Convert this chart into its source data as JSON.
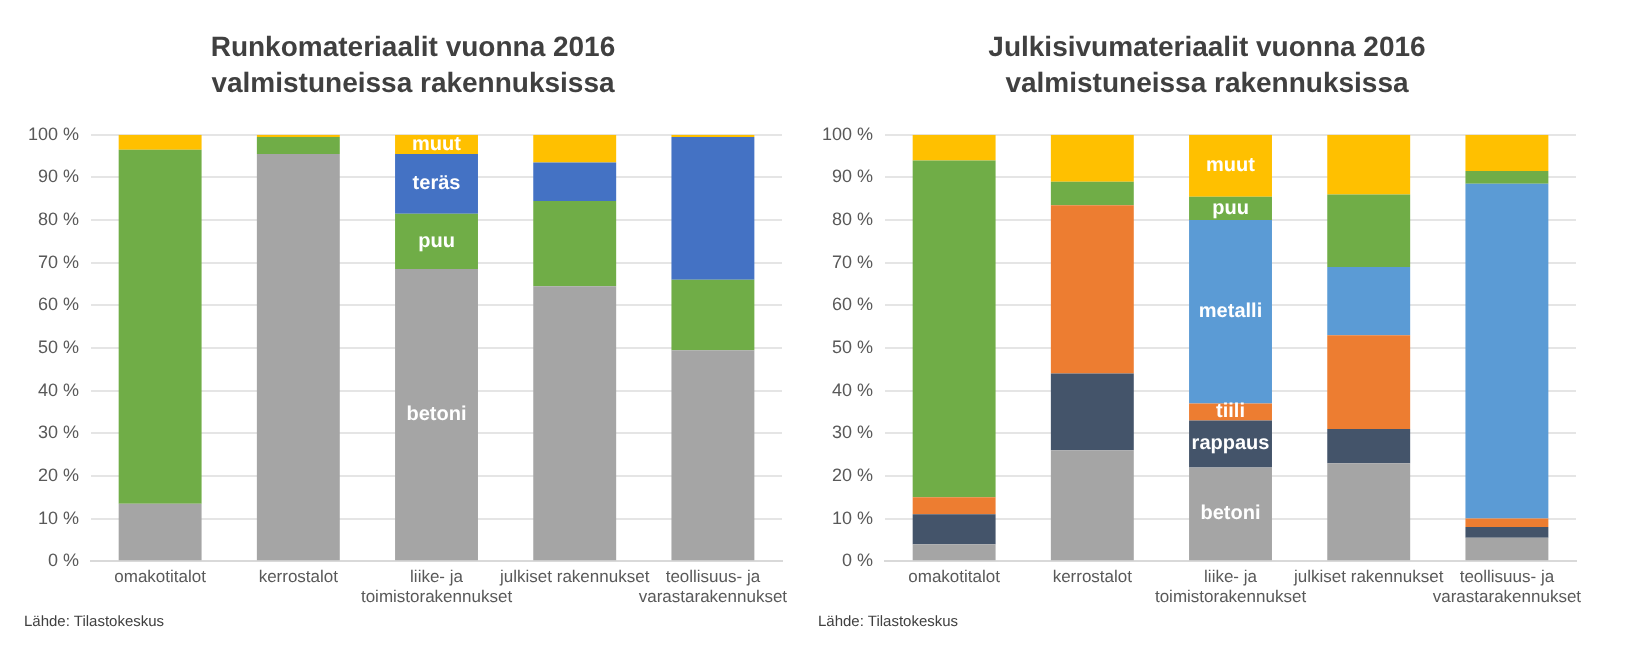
{
  "chart_data": [
    {
      "type": "bar",
      "stacked": true,
      "title": "Runkomateriaalit vuonna 2016 valmistuneissa rakennuksissa",
      "categories": [
        "omakotitalot",
        "kerrostalot",
        "liike- ja toimistorakennukset",
        "julkiset rakennukset",
        "teollisuus- ja varastarakennukset"
      ],
      "series": [
        {
          "name": "betoni",
          "color": "#a5a5a5",
          "values": [
            13.5,
            95.5,
            68.5,
            64.5,
            49.5
          ]
        },
        {
          "name": "puu",
          "color": "#70ad47",
          "values": [
            83,
            4,
            13,
            20,
            16.5
          ]
        },
        {
          "name": "teräs",
          "color": "#4472c4",
          "values": [
            0,
            0,
            14,
            9,
            33.5
          ]
        },
        {
          "name": "muut",
          "color": "#ffc000",
          "values": [
            3.5,
            0.5,
            4.5,
            6.5,
            0.5
          ]
        }
      ],
      "ylim": [
        0,
        100
      ],
      "yticks": [
        {
          "value": 0,
          "label": "0 %"
        },
        {
          "value": 10,
          "label": "10 %"
        },
        {
          "value": 20,
          "label": "20 %"
        },
        {
          "value": 30,
          "label": "30 %"
        },
        {
          "value": 40,
          "label": "40 %"
        },
        {
          "value": 50,
          "label": "50 %"
        },
        {
          "value": 60,
          "label": "60 %"
        },
        {
          "value": 70,
          "label": "70 %"
        },
        {
          "value": 80,
          "label": "80 %"
        },
        {
          "value": 90,
          "label": "90 %"
        },
        {
          "value": 100,
          "label": "100 %"
        }
      ],
      "grid": "y",
      "legend": false,
      "annotations": [
        "Lähde: Tilastokeskus"
      ]
    },
    {
      "type": "bar",
      "stacked": true,
      "title": "Julkisivumateriaalit vuonna 2016 valmistuneissa rakennuksissa",
      "categories": [
        "omakotitalot",
        "kerrostalot",
        "liike- ja toimistorakennukset",
        "julkiset rakennukset",
        "teollisuus- ja varastarakennukset"
      ],
      "series": [
        {
          "name": "betoni",
          "color": "#a5a5a5",
          "values": [
            4,
            26,
            22,
            23,
            5.5
          ]
        },
        {
          "name": "rappaus",
          "color": "#44546a",
          "values": [
            7,
            18,
            11,
            8,
            2.5
          ]
        },
        {
          "name": "tiili",
          "color": "#ed7d31",
          "values": [
            4,
            39.5,
            4,
            22,
            2
          ]
        },
        {
          "name": "metalli",
          "color": "#5b9bd5",
          "values": [
            0,
            0,
            43,
            16,
            78.5
          ]
        },
        {
          "name": "puu",
          "color": "#70ad47",
          "values": [
            79,
            5.5,
            5.5,
            17,
            3
          ]
        },
        {
          "name": "muut",
          "color": "#ffc000",
          "values": [
            6,
            11,
            14.5,
            14,
            8.5
          ]
        }
      ],
      "ylim": [
        0,
        100
      ],
      "yticks": [
        {
          "value": 0,
          "label": "0 %"
        },
        {
          "value": 10,
          "label": "10 %"
        },
        {
          "value": 20,
          "label": "20 %"
        },
        {
          "value": 30,
          "label": "30 %"
        },
        {
          "value": 40,
          "label": "40 %"
        },
        {
          "value": 50,
          "label": "50 %"
        },
        {
          "value": 60,
          "label": "60 %"
        },
        {
          "value": 70,
          "label": "70 %"
        },
        {
          "value": 80,
          "label": "80 %"
        },
        {
          "value": 90,
          "label": "90 %"
        },
        {
          "value": 100,
          "label": "100 %"
        }
      ],
      "grid": "y",
      "legend": false,
      "annotations": [
        "Lähde: Tilastokeskus"
      ]
    }
  ]
}
